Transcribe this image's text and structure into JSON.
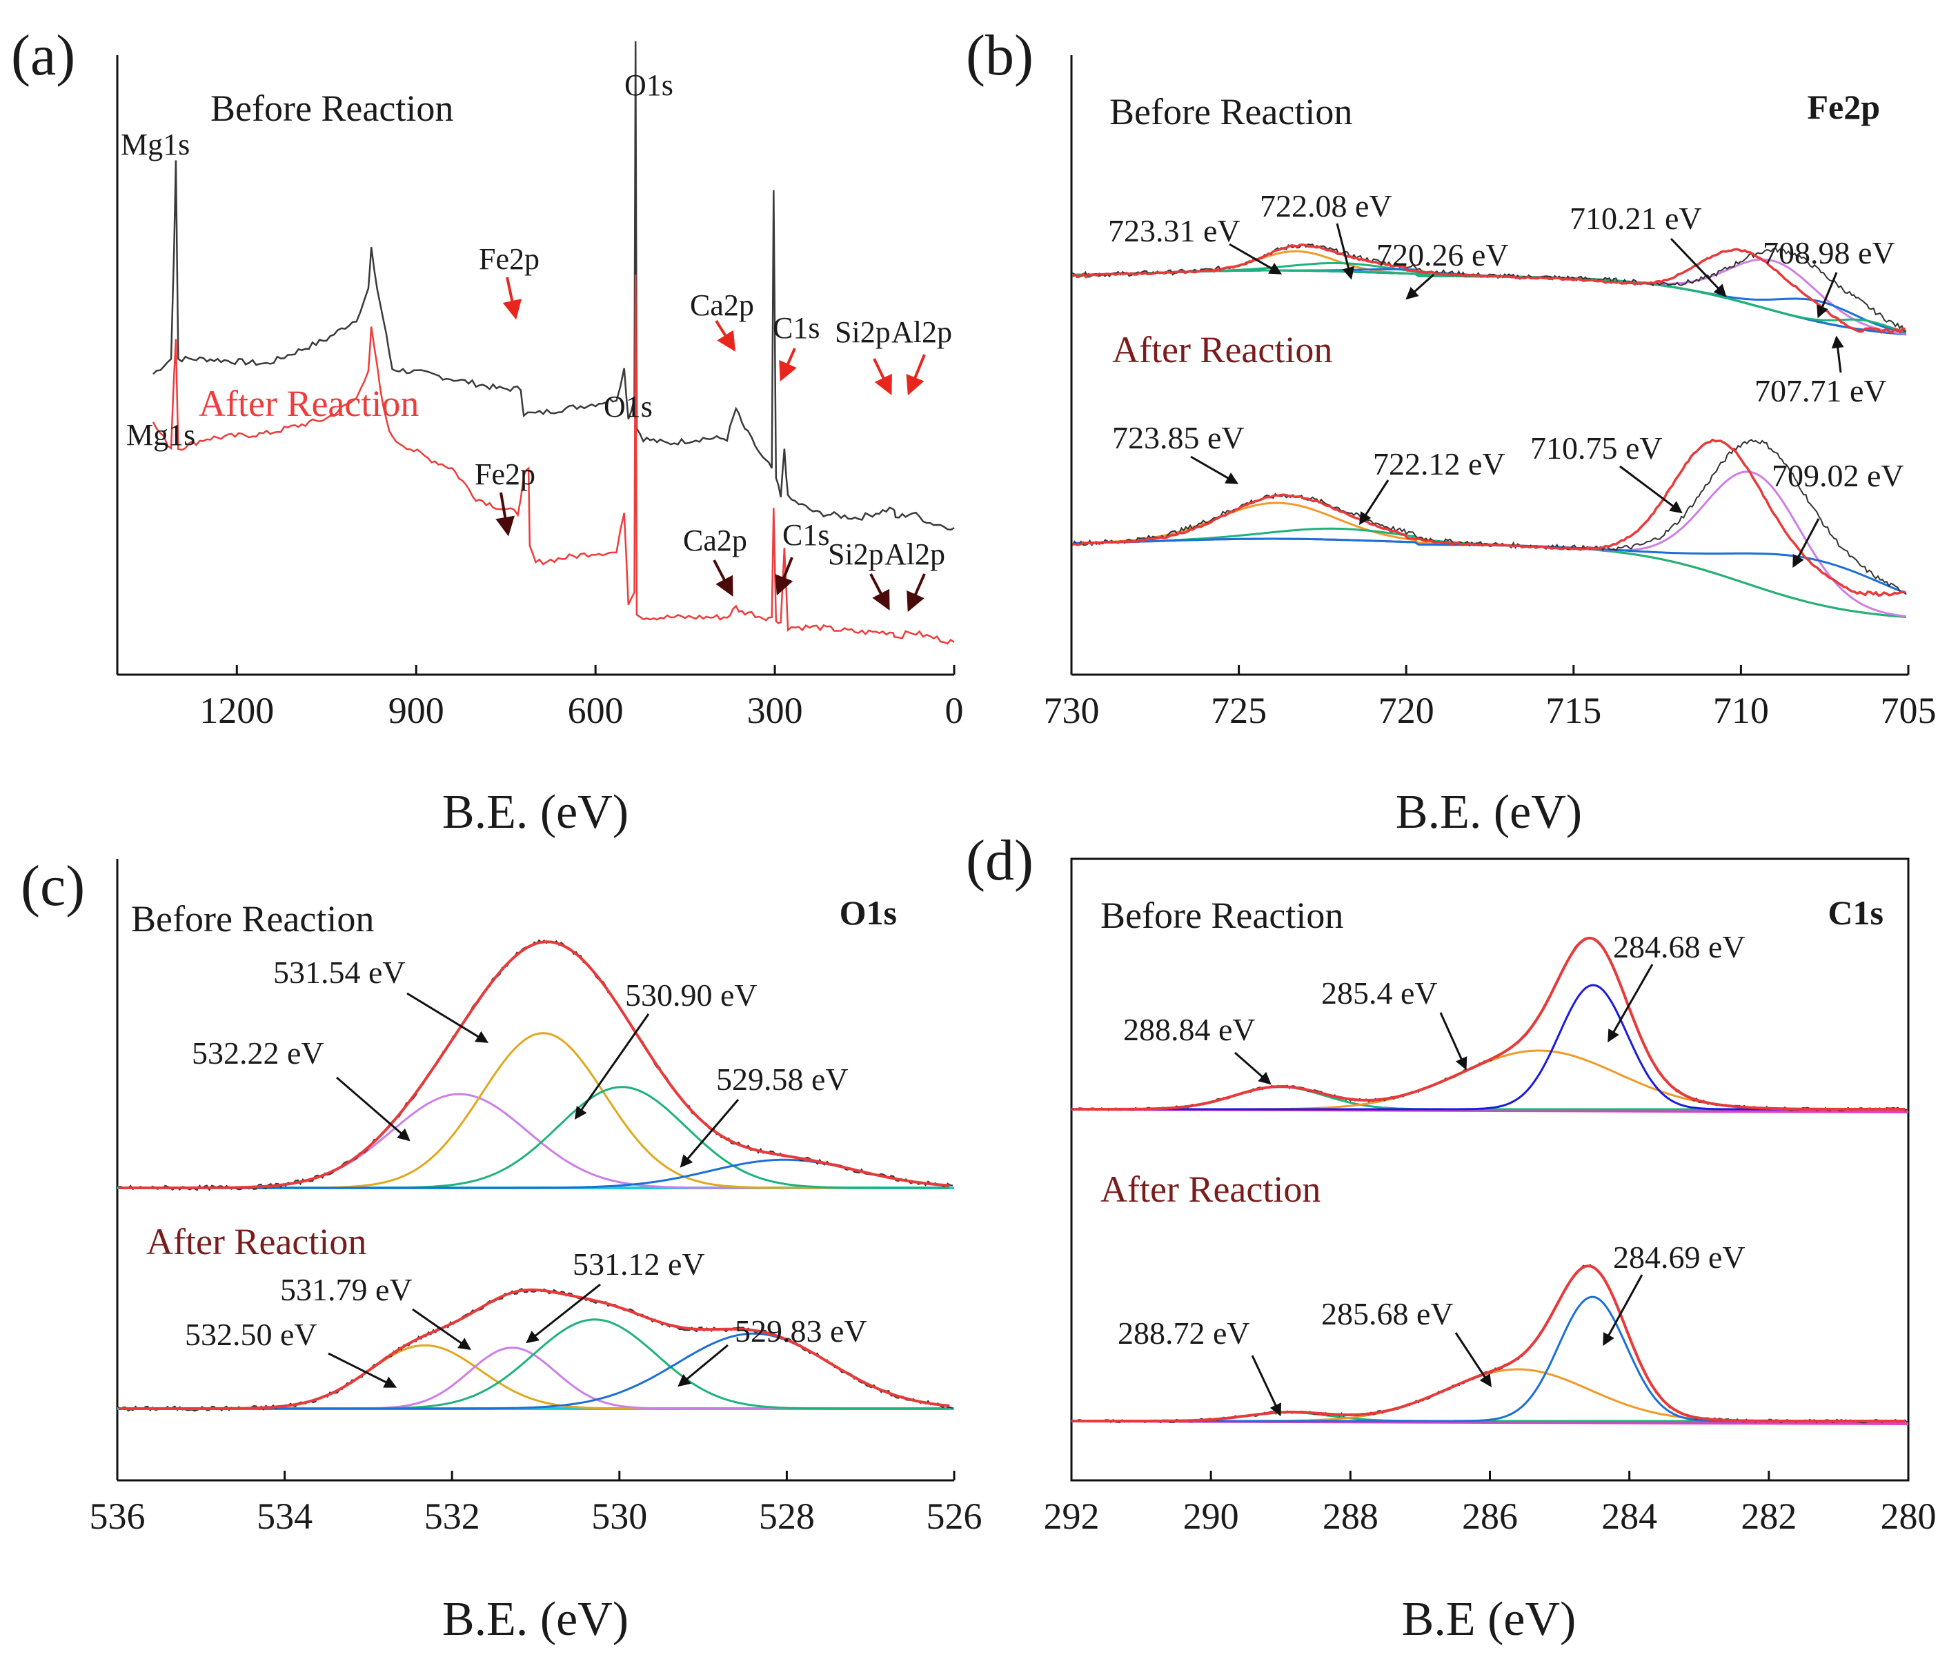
{
  "figure": {
    "palette": {
      "before": "#3a3a3a",
      "after": "#ef3b3b",
      "after_label": "#ef3b3b",
      "after_label_dark": "#7a1c1c",
      "red_arrow": "#e8261c",
      "dark_arrow": "#4a0a0a",
      "envelope": "#e83a3a",
      "raw": "#333333",
      "background": "#9a9a9a",
      "orange": "#f09a28",
      "green": "#1db37a",
      "violet": "#cc7fe8",
      "blue": "#1a6fd8",
      "pure_blue": "#1a1ae0",
      "golden": "#e0a81c",
      "magenta": "#e040c8",
      "cyan": "#1fc9d6"
    }
  },
  "chart_data": [
    {
      "panel": "(a)",
      "type": "line",
      "title": "",
      "xlabel": "B.E. (eV)",
      "ylabel": "",
      "xlim": [
        1400,
        0
      ],
      "xticks": [
        "1200",
        "900",
        "600",
        "300",
        "0"
      ],
      "xtick_values": [
        1200,
        900,
        600,
        300,
        0
      ],
      "grid": false,
      "condition_labels": [
        "Before Reaction",
        "After Reaction"
      ],
      "series": [
        {
          "name": "Before Reaction",
          "color": "#3a3a3a",
          "points": [
            [
              1340,
              0.55
            ],
            [
              1310,
              0.58
            ],
            [
              1305,
              0.8
            ],
            [
              1302,
              0.98
            ],
            [
              1298,
              0.58
            ],
            [
              1250,
              0.58
            ],
            [
              1150,
              0.57
            ],
            [
              1050,
              0.62
            ],
            [
              1000,
              0.66
            ],
            [
              980,
              0.72
            ],
            [
              975,
              0.8
            ],
            [
              965,
              0.72
            ],
            [
              955,
              0.66
            ],
            [
              940,
              0.56
            ],
            [
              880,
              0.55
            ],
            [
              800,
              0.53
            ],
            [
              760,
              0.52
            ],
            [
              725,
              0.52
            ],
            [
              720,
              0.47
            ],
            [
              700,
              0.47
            ],
            [
              650,
              0.48
            ],
            [
              600,
              0.49
            ],
            [
              565,
              0.5
            ],
            [
              552,
              0.56
            ],
            [
              545,
              0.46
            ],
            [
              535,
              0.5
            ],
            [
              533,
              1.22
            ],
            [
              531,
              0.44
            ],
            [
              520,
              0.42
            ],
            [
              480,
              0.41
            ],
            [
              420,
              0.42
            ],
            [
              380,
              0.42
            ],
            [
              365,
              0.48
            ],
            [
              355,
              0.45
            ],
            [
              345,
              0.43
            ],
            [
              320,
              0.38
            ],
            [
              305,
              0.36
            ],
            [
              302,
              0.92
            ],
            [
              298,
              0.34
            ],
            [
              290,
              0.3
            ],
            [
              284,
              0.4
            ],
            [
              278,
              0.3
            ],
            [
              230,
              0.27
            ],
            [
              160,
              0.26
            ],
            [
              102,
              0.28
            ],
            [
              98,
              0.26
            ],
            [
              70,
              0.27
            ],
            [
              40,
              0.25
            ],
            [
              0,
              0.24
            ]
          ],
          "peaks": [
            {
              "label": "Mg1s",
              "be": 1304
            },
            {
              "label": "Fe2p",
              "be": 711
            },
            {
              "label": "O1s",
              "be": 531
            },
            {
              "label": "Ca2p",
              "be": 347
            },
            {
              "label": "C1s",
              "be": 285
            },
            {
              "label": "Si2p",
              "be": 102
            },
            {
              "label": "Al2p",
              "be": 74
            }
          ]
        },
        {
          "name": "After Reaction",
          "color": "#ef3b3b",
          "points": [
            [
              1340,
              0.45
            ],
            [
              1310,
              0.4
            ],
            [
              1305,
              0.55
            ],
            [
              1302,
              0.62
            ],
            [
              1298,
              0.4
            ],
            [
              1250,
              0.42
            ],
            [
              1150,
              0.43
            ],
            [
              1050,
              0.46
            ],
            [
              1000,
              0.5
            ],
            [
              980,
              0.56
            ],
            [
              975,
              0.64
            ],
            [
              965,
              0.56
            ],
            [
              955,
              0.48
            ],
            [
              940,
              0.42
            ],
            [
              880,
              0.38
            ],
            [
              840,
              0.36
            ],
            [
              800,
              0.3
            ],
            [
              760,
              0.28
            ],
            [
              730,
              0.27
            ],
            [
              720,
              0.34
            ],
            [
              712,
              0.36
            ],
            [
              710,
              0.2
            ],
            [
              700,
              0.17
            ],
            [
              650,
              0.18
            ],
            [
              600,
              0.19
            ],
            [
              565,
              0.19
            ],
            [
              552,
              0.27
            ],
            [
              545,
              0.09
            ],
            [
              535,
              0.11
            ],
            [
              533,
              0.75
            ],
            [
              531,
              0.07
            ],
            [
              520,
              0.06
            ],
            [
              480,
              0.06
            ],
            [
              420,
              0.06
            ],
            [
              380,
              0.06
            ],
            [
              365,
              0.08
            ],
            [
              355,
              0.07
            ],
            [
              345,
              0.07
            ],
            [
              320,
              0.06
            ],
            [
              305,
              0.06
            ],
            [
              302,
              0.28
            ],
            [
              298,
              0.05
            ],
            [
              290,
              0.05
            ],
            [
              284,
              0.2
            ],
            [
              278,
              0.04
            ],
            [
              230,
              0.04
            ],
            [
              160,
              0.03
            ],
            [
              102,
              0.03
            ],
            [
              98,
              0.02
            ],
            [
              70,
              0.03
            ],
            [
              40,
              0.02
            ],
            [
              0,
              0.01
            ]
          ],
          "peaks": [
            {
              "label": "Mg1s",
              "be": 1304
            },
            {
              "label": "Fe2p",
              "be": 711
            },
            {
              "label": "O1s",
              "be": 531
            },
            {
              "label": "Ca2p",
              "be": 347
            },
            {
              "label": "C1s",
              "be": 285
            },
            {
              "label": "Si2p",
              "be": 102
            },
            {
              "label": "Al2p",
              "be": 74
            }
          ]
        }
      ]
    },
    {
      "panel": "(b)",
      "type": "line",
      "title": "Fe2p",
      "xlabel": "B.E. (eV)",
      "ylabel": "",
      "xlim": [
        730,
        705
      ],
      "xticks": [
        "730",
        "725",
        "720",
        "715",
        "710",
        "705"
      ],
      "xtick_values": [
        730,
        725,
        720,
        715,
        710,
        705
      ],
      "grid": false,
      "condition_labels": [
        "Before Reaction",
        "After Reaction"
      ],
      "series": [
        {
          "name": "Before Reaction",
          "offset": 0.52,
          "components": [
            {
              "name": "background",
              "color": "#9a9a9a"
            },
            {
              "name": "723.31 eV",
              "center": 723.31,
              "color": "#f09a28"
            },
            {
              "name": "722.08 eV",
              "center": 722.08,
              "color": "#1db37a"
            },
            {
              "name": "720.26 eV",
              "center": 720.26,
              "color": "#1a6fd8"
            },
            {
              "name": "710.21 eV",
              "center": 710.21,
              "color": "#cc7fe8"
            },
            {
              "name": "708.98 eV",
              "center": 708.98,
              "color": "#1a6fd8"
            },
            {
              "name": "707.71 eV",
              "center": 707.71,
              "color": "#1db37a"
            },
            {
              "name": "envelope",
              "color": "#e83a3a"
            }
          ]
        },
        {
          "name": "After Reaction",
          "offset": 0.0,
          "components": [
            {
              "name": "background",
              "color": "#9a9a9a"
            },
            {
              "name": "723.85 eV",
              "center": 723.85,
              "color": "#f09a28"
            },
            {
              "name": "722.12 eV",
              "center": 722.12,
              "color": "#1db37a"
            },
            {
              "name": "710.75 eV",
              "center": 710.75,
              "color": "#cc7fe8"
            },
            {
              "name": "709.02 eV",
              "center": 709.02,
              "color": "#1a6fd8"
            },
            {
              "name": "envelope",
              "color": "#e83a3a"
            }
          ]
        }
      ],
      "peak_labels": [
        "723.31 eV",
        "722.08 eV",
        "720.26 eV",
        "710.21 eV",
        "708.98 eV",
        "707.71 eV",
        "723.85 eV",
        "722.12 eV",
        "710.75 eV",
        "709.02 eV"
      ]
    },
    {
      "panel": "(c)",
      "type": "line",
      "title": "O1s",
      "xlabel": "B.E. (eV)",
      "ylabel": "",
      "xlim": [
        536,
        526
      ],
      "xticks": [
        "536",
        "534",
        "532",
        "530",
        "528",
        "526"
      ],
      "xtick_values": [
        536,
        534,
        532,
        530,
        528,
        526
      ],
      "grid": false,
      "condition_labels": [
        "Before Reaction",
        "After Reaction"
      ],
      "series": [
        {
          "name": "Before Reaction",
          "components": [
            {
              "name": "532.22 eV",
              "center": 532.22,
              "color": "#cc7fe8"
            },
            {
              "name": "531.54 eV",
              "center": 531.54,
              "color": "#e0a81c"
            },
            {
              "name": "530.90 eV",
              "center": 530.9,
              "color": "#1db37a"
            },
            {
              "name": "529.58 eV",
              "center": 529.58,
              "color": "#1a6fd8"
            }
          ]
        },
        {
          "name": "After Reaction",
          "components": [
            {
              "name": "532.50 eV",
              "center": 532.5,
              "color": "#e0a81c"
            },
            {
              "name": "531.79 eV",
              "center": 531.79,
              "color": "#cc7fe8"
            },
            {
              "name": "531.12 eV",
              "center": 531.12,
              "color": "#1db37a"
            },
            {
              "name": "529.83 eV",
              "center": 529.83,
              "color": "#1a6fd8"
            }
          ]
        }
      ],
      "peak_labels": [
        "531.54 eV",
        "530.90 eV",
        "532.22 eV",
        "529.58 eV",
        "531.79 eV",
        "531.12 eV",
        "532.50 eV",
        "529.83 eV"
      ]
    },
    {
      "panel": "(d)",
      "type": "line",
      "title": "C1s",
      "xlabel": "B.E (eV)",
      "ylabel": "",
      "xlim": [
        292,
        280
      ],
      "xticks": [
        "292",
        "290",
        "288",
        "286",
        "284",
        "282",
        "280"
      ],
      "xtick_values": [
        292,
        290,
        288,
        286,
        284,
        282,
        280
      ],
      "grid": false,
      "condition_labels": [
        "Before Reaction",
        "After Reaction"
      ],
      "series": [
        {
          "name": "Before Reaction",
          "components": [
            {
              "name": "288.84 eV",
              "center": 288.84,
              "color": "#1db37a"
            },
            {
              "name": "285.4 eV",
              "center": 285.4,
              "color": "#f09a28"
            },
            {
              "name": "284.68 eV",
              "center": 284.68,
              "color": "#1a1ae0"
            }
          ]
        },
        {
          "name": "After Reaction",
          "components": [
            {
              "name": "288.72 eV",
              "center": 288.72,
              "color": "#1db37a"
            },
            {
              "name": "285.68 eV",
              "center": 285.68,
              "color": "#f09a28"
            },
            {
              "name": "284.69 eV",
              "center": 284.69,
              "color": "#1a6fd8"
            }
          ]
        }
      ],
      "peak_labels": [
        "284.68 eV",
        "288.84 eV",
        "285.4 eV",
        "284.69 eV",
        "288.72 eV",
        "285.68 eV"
      ]
    }
  ]
}
